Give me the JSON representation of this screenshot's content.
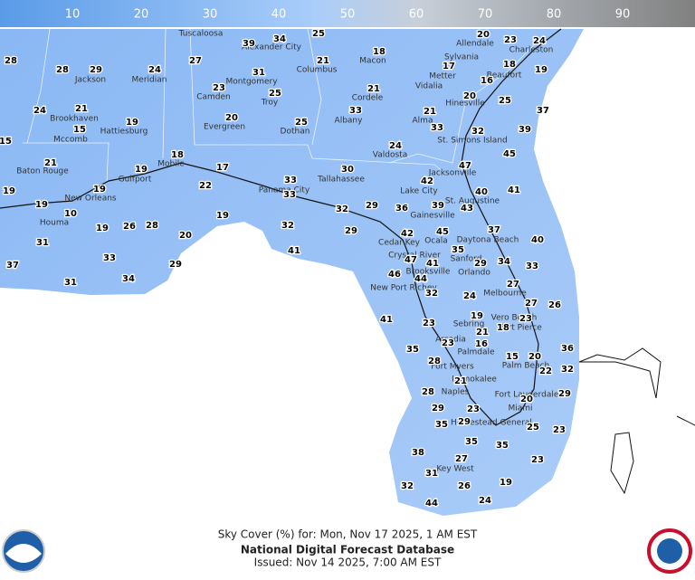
{
  "colorbar": {
    "ticks": [
      10,
      20,
      30,
      40,
      50,
      60,
      70,
      80,
      90
    ]
  },
  "cities": [
    "Tuscaloosa",
    "Alexander City",
    "Columbus",
    "Macon",
    "Sylvania",
    "Allendale",
    "Charleston",
    "Jackson",
    "Meridian",
    "Montgomery",
    "Metter",
    "Vidalia",
    "Beaufort",
    "Camden",
    "Troy",
    "Cordele",
    "Hinesville",
    "Brookhaven",
    "Evergreen",
    "Albany",
    "Alma",
    "Hattiesburg",
    "Dothan",
    "Mccomb",
    "St. Simons Island",
    "Valdosta",
    "Baton Rouge",
    "Mobile",
    "Gulfport",
    "Tallahassee",
    "Jacksonville",
    "Panama City",
    "Lake City",
    "New Orleans",
    "St. Augustine",
    "Gainesville",
    "Houma",
    "Daytona Beach",
    "Cedar Key",
    "Ocala",
    "Crystal River",
    "Sanford",
    "Brooksville",
    "Orlando",
    "New Port Richey",
    "Melbourne",
    "Sebring",
    "Vero Beach",
    "Fort Pierce",
    "Arcadia",
    "Palmdale",
    "Fort Myers",
    "Palm Beach",
    "Immokalee",
    "Naples",
    "Fort Lauderdale",
    "Miami",
    "Homestead General",
    "Key West"
  ],
  "forecast_values": [
    39,
    34,
    25,
    18,
    20,
    23,
    24,
    28,
    28,
    29,
    24,
    27,
    21,
    17,
    18,
    19,
    31,
    16,
    25,
    23,
    21,
    20,
    25,
    37,
    24,
    21,
    33,
    21,
    20,
    19,
    25,
    33,
    32,
    39,
    15,
    15,
    24,
    45,
    18,
    21,
    17,
    47,
    30,
    19,
    42,
    33,
    22,
    40,
    41,
    19,
    19,
    33,
    19,
    36,
    39,
    43,
    32,
    29,
    10,
    19,
    19,
    26,
    28,
    32,
    29,
    20,
    42,
    45,
    37,
    40,
    31,
    41,
    35,
    47,
    41,
    29,
    34,
    33,
    37,
    33,
    29,
    46,
    44,
    34,
    31,
    27,
    32,
    24,
    27,
    26,
    19,
    23,
    18,
    41,
    23,
    35,
    23,
    21,
    16,
    36,
    15,
    20,
    28,
    22,
    32,
    21,
    29,
    28,
    20,
    29,
    23,
    35,
    29,
    25,
    23,
    35,
    35,
    38,
    27,
    23,
    31,
    19,
    32,
    26,
    44,
    24
  ],
  "footer": {
    "title": "Sky Cover (%) for: Mon, Nov 17 2025, 1 AM EST",
    "product": "National Digital Forecast Database",
    "issued": "Issued: Nov 14 2025, 7:00 AM EST"
  }
}
